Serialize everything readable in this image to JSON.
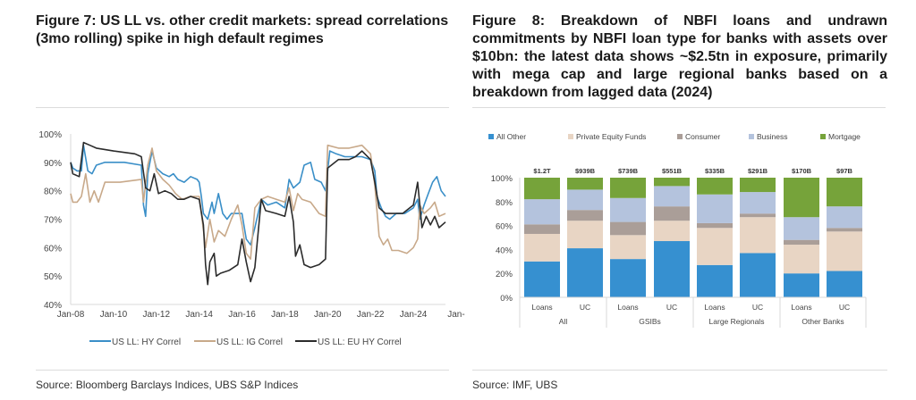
{
  "figure7": {
    "title_line1": "Figure 7: US LL vs. other credit markets: spread correlations",
    "title_line2": "(3mo rolling) spike in high default regimes",
    "source": "Source: Bloomberg Barclays Indices, UBS S&P Indices"
  },
  "figure8": {
    "title": "Figure 8: Breakdown of NBFI loans and undrawn commitments by NBFI loan type for banks with assets over $10bn: the latest data shows ~$2.5tn in exposure, primarily with mega cap and large regional banks based on a breakdown from lagged data (2024)",
    "source": "Source: IMF, UBS"
  },
  "chart_data": [
    {
      "type": "line",
      "title": "Figure 7: US LL vs. other credit markets: spread correlations (3mo rolling) spike in high default regimes",
      "xlabel": "",
      "ylabel": "",
      "ylim": [
        40,
        100
      ],
      "yticks": [
        "40%",
        "50%",
        "60%",
        "70%",
        "80%",
        "90%",
        "100%"
      ],
      "xlim": [
        2008.0,
        2025.5
      ],
      "xticks": [
        "Jan-08",
        "Jan-10",
        "Jan-12",
        "Jan-14",
        "Jan-16",
        "Jan-18",
        "Jan-20",
        "Jan-22",
        "Jan-24",
        "Jan-"
      ],
      "grid": false,
      "legend": "bottom",
      "series": [
        {
          "name": "US LL: HY Correl",
          "color": "#3a8fc8",
          "points": [
            [
              2008.0,
              90
            ],
            [
              2008.1,
              88
            ],
            [
              2008.3,
              87
            ],
            [
              2008.5,
              87
            ],
            [
              2008.6,
              96
            ],
            [
              2008.8,
              87
            ],
            [
              2009.0,
              86
            ],
            [
              2009.2,
              89
            ],
            [
              2009.6,
              90
            ],
            [
              2010.5,
              90
            ],
            [
              2011.3,
              89
            ],
            [
              2011.4,
              75
            ],
            [
              2011.5,
              71
            ],
            [
              2011.6,
              86
            ],
            [
              2011.8,
              94
            ],
            [
              2012.0,
              88
            ],
            [
              2012.3,
              86
            ],
            [
              2012.6,
              85
            ],
            [
              2012.8,
              86
            ],
            [
              2013.0,
              84
            ],
            [
              2013.3,
              83
            ],
            [
              2013.6,
              85
            ],
            [
              2013.9,
              84
            ],
            [
              2014.0,
              83
            ],
            [
              2014.1,
              78
            ],
            [
              2014.2,
              72
            ],
            [
              2014.4,
              70
            ],
            [
              2014.6,
              76
            ],
            [
              2014.7,
              72
            ],
            [
              2014.9,
              79
            ],
            [
              2015.1,
              72
            ],
            [
              2015.3,
              70
            ],
            [
              2015.5,
              72
            ],
            [
              2015.8,
              72
            ],
            [
              2016.0,
              72
            ],
            [
              2016.2,
              63
            ],
            [
              2016.4,
              61
            ],
            [
              2016.6,
              67
            ],
            [
              2016.9,
              77
            ],
            [
              2017.2,
              75
            ],
            [
              2017.6,
              76
            ],
            [
              2018.0,
              74
            ],
            [
              2018.2,
              84
            ],
            [
              2018.4,
              81
            ],
            [
              2018.7,
              83
            ],
            [
              2018.9,
              89
            ],
            [
              2019.2,
              90
            ],
            [
              2019.4,
              84
            ],
            [
              2019.7,
              83
            ],
            [
              2019.9,
              80
            ],
            [
              2020.1,
              94
            ],
            [
              2020.4,
              93
            ],
            [
              2020.8,
              92
            ],
            [
              2021.2,
              92
            ],
            [
              2021.6,
              92
            ],
            [
              2022.0,
              91
            ],
            [
              2022.2,
              87
            ],
            [
              2022.3,
              78
            ],
            [
              2022.5,
              74
            ],
            [
              2022.7,
              71
            ],
            [
              2022.9,
              70
            ],
            [
              2023.2,
              72
            ],
            [
              2023.6,
              72
            ],
            [
              2024.0,
              74
            ],
            [
              2024.2,
              77
            ],
            [
              2024.3,
              70
            ],
            [
              2024.5,
              75
            ],
            [
              2024.7,
              79
            ],
            [
              2024.9,
              83
            ],
            [
              2025.1,
              85
            ],
            [
              2025.3,
              80
            ],
            [
              2025.5,
              78
            ]
          ]
        },
        {
          "name": "US LL: IG Correl",
          "color": "#c8a98a",
          "points": [
            [
              2008.0,
              79
            ],
            [
              2008.1,
              76
            ],
            [
              2008.3,
              76
            ],
            [
              2008.5,
              78
            ],
            [
              2008.7,
              86
            ],
            [
              2008.9,
              76
            ],
            [
              2009.1,
              80
            ],
            [
              2009.3,
              76
            ],
            [
              2009.6,
              83
            ],
            [
              2010.3,
              83
            ],
            [
              2011.3,
              84
            ],
            [
              2011.4,
              76
            ],
            [
              2011.6,
              89
            ],
            [
              2011.8,
              95
            ],
            [
              2012.0,
              87
            ],
            [
              2012.3,
              84
            ],
            [
              2012.6,
              82
            ],
            [
              2012.9,
              79
            ],
            [
              2013.2,
              77
            ],
            [
              2013.6,
              78
            ],
            [
              2014.0,
              78
            ],
            [
              2014.1,
              72
            ],
            [
              2014.3,
              60
            ],
            [
              2014.5,
              70
            ],
            [
              2014.7,
              62
            ],
            [
              2014.9,
              66
            ],
            [
              2015.2,
              64
            ],
            [
              2015.5,
              70
            ],
            [
              2015.8,
              75
            ],
            [
              2016.0,
              68
            ],
            [
              2016.2,
              58
            ],
            [
              2016.4,
              56
            ],
            [
              2016.6,
              74
            ],
            [
              2016.9,
              77
            ],
            [
              2017.2,
              78
            ],
            [
              2017.6,
              77
            ],
            [
              2018.0,
              76
            ],
            [
              2018.2,
              81
            ],
            [
              2018.4,
              73
            ],
            [
              2018.6,
              79
            ],
            [
              2018.8,
              77
            ],
            [
              2019.2,
              76
            ],
            [
              2019.6,
              72
            ],
            [
              2019.9,
              71
            ],
            [
              2020.0,
              96
            ],
            [
              2020.5,
              95
            ],
            [
              2021.0,
              95
            ],
            [
              2021.6,
              96
            ],
            [
              2022.0,
              93
            ],
            [
              2022.2,
              82
            ],
            [
              2022.4,
              64
            ],
            [
              2022.6,
              61
            ],
            [
              2022.8,
              63
            ],
            [
              2023.0,
              59
            ],
            [
              2023.3,
              59
            ],
            [
              2023.7,
              58
            ],
            [
              2024.0,
              60
            ],
            [
              2024.2,
              63
            ],
            [
              2024.3,
              75
            ],
            [
              2024.5,
              72
            ],
            [
              2024.8,
              74
            ],
            [
              2025.0,
              76
            ],
            [
              2025.2,
              71
            ],
            [
              2025.5,
              72
            ]
          ]
        },
        {
          "name": "US LL: EU HY Correl",
          "color": "#2b2b2b",
          "points": [
            [
              2008.0,
              90
            ],
            [
              2008.1,
              86
            ],
            [
              2008.4,
              85
            ],
            [
              2008.6,
              97
            ],
            [
              2008.9,
              96
            ],
            [
              2009.2,
              95
            ],
            [
              2010.0,
              94
            ],
            [
              2011.0,
              93
            ],
            [
              2011.3,
              92
            ],
            [
              2011.5,
              81
            ],
            [
              2011.7,
              80
            ],
            [
              2011.9,
              86
            ],
            [
              2012.1,
              79
            ],
            [
              2012.4,
              80
            ],
            [
              2012.7,
              79
            ],
            [
              2013.0,
              77
            ],
            [
              2013.3,
              77
            ],
            [
              2013.6,
              78
            ],
            [
              2014.0,
              77
            ],
            [
              2014.2,
              68
            ],
            [
              2014.3,
              54
            ],
            [
              2014.4,
              47
            ],
            [
              2014.5,
              55
            ],
            [
              2014.7,
              58
            ],
            [
              2014.8,
              50
            ],
            [
              2015.0,
              51
            ],
            [
              2015.4,
              52
            ],
            [
              2015.8,
              54
            ],
            [
              2016.0,
              63
            ],
            [
              2016.2,
              55
            ],
            [
              2016.4,
              48
            ],
            [
              2016.6,
              53
            ],
            [
              2016.9,
              77
            ],
            [
              2017.1,
              73
            ],
            [
              2017.6,
              72
            ],
            [
              2018.0,
              71
            ],
            [
              2018.2,
              78
            ],
            [
              2018.4,
              69
            ],
            [
              2018.5,
              57
            ],
            [
              2018.7,
              61
            ],
            [
              2018.9,
              54
            ],
            [
              2019.2,
              53
            ],
            [
              2019.6,
              54
            ],
            [
              2019.9,
              56
            ],
            [
              2020.0,
              88
            ],
            [
              2020.5,
              91
            ],
            [
              2021.0,
              91
            ],
            [
              2021.3,
              92
            ],
            [
              2021.6,
              94
            ],
            [
              2022.0,
              91
            ],
            [
              2022.2,
              83
            ],
            [
              2022.4,
              74
            ],
            [
              2022.7,
              72
            ],
            [
              2023.0,
              72
            ],
            [
              2023.5,
              72
            ],
            [
              2024.0,
              75
            ],
            [
              2024.2,
              83
            ],
            [
              2024.4,
              67
            ],
            [
              2024.6,
              71
            ],
            [
              2024.8,
              68
            ],
            [
              2025.0,
              71
            ],
            [
              2025.2,
              67
            ],
            [
              2025.5,
              69
            ]
          ]
        }
      ]
    },
    {
      "type": "bar",
      "stacked": true,
      "percent": true,
      "title": "Figure 8: Breakdown of NBFI loans and undrawn commitments by NBFI loan type for banks with assets over $10bn",
      "xlabel": "",
      "ylabel": "",
      "ylim": [
        0,
        100
      ],
      "yticks": [
        "0%",
        "20%",
        "40%",
        "60%",
        "80%",
        "100%"
      ],
      "grid": false,
      "legend": "top",
      "categories": [
        "Loans",
        "UC",
        "Loans",
        "UC",
        "Loans",
        "UC",
        "Loans",
        "UC"
      ],
      "groups": [
        {
          "name": "All",
          "span": 2
        },
        {
          "name": "GSIBs",
          "span": 2
        },
        {
          "name": "Large Regionals",
          "span": 2
        },
        {
          "name": "Other Banks",
          "span": 2
        }
      ],
      "totals": [
        "$1.2T",
        "$939B",
        "$739B",
        "$551B",
        "$335B",
        "$291B",
        "$170B",
        "$97B"
      ],
      "series": [
        {
          "name": "All Other",
          "color": "#3690d0",
          "values": [
            30,
            41,
            32,
            47,
            27,
            37,
            20,
            22
          ]
        },
        {
          "name": "Private Equity Funds",
          "color": "#e8d5c4",
          "values": [
            23,
            23,
            20,
            17,
            31,
            30,
            24,
            33
          ]
        },
        {
          "name": "Consumer",
          "color": "#aa9e98",
          "values": [
            8,
            9,
            11,
            12,
            4,
            3,
            4,
            3
          ]
        },
        {
          "name": "Business",
          "color": "#b4c3dd",
          "values": [
            21,
            17,
            20,
            17,
            24,
            18,
            19,
            18
          ]
        },
        {
          "name": "Mortgage",
          "color": "#76a33a",
          "values": [
            18,
            10,
            17,
            7,
            14,
            12,
            33,
            24
          ]
        }
      ]
    }
  ]
}
